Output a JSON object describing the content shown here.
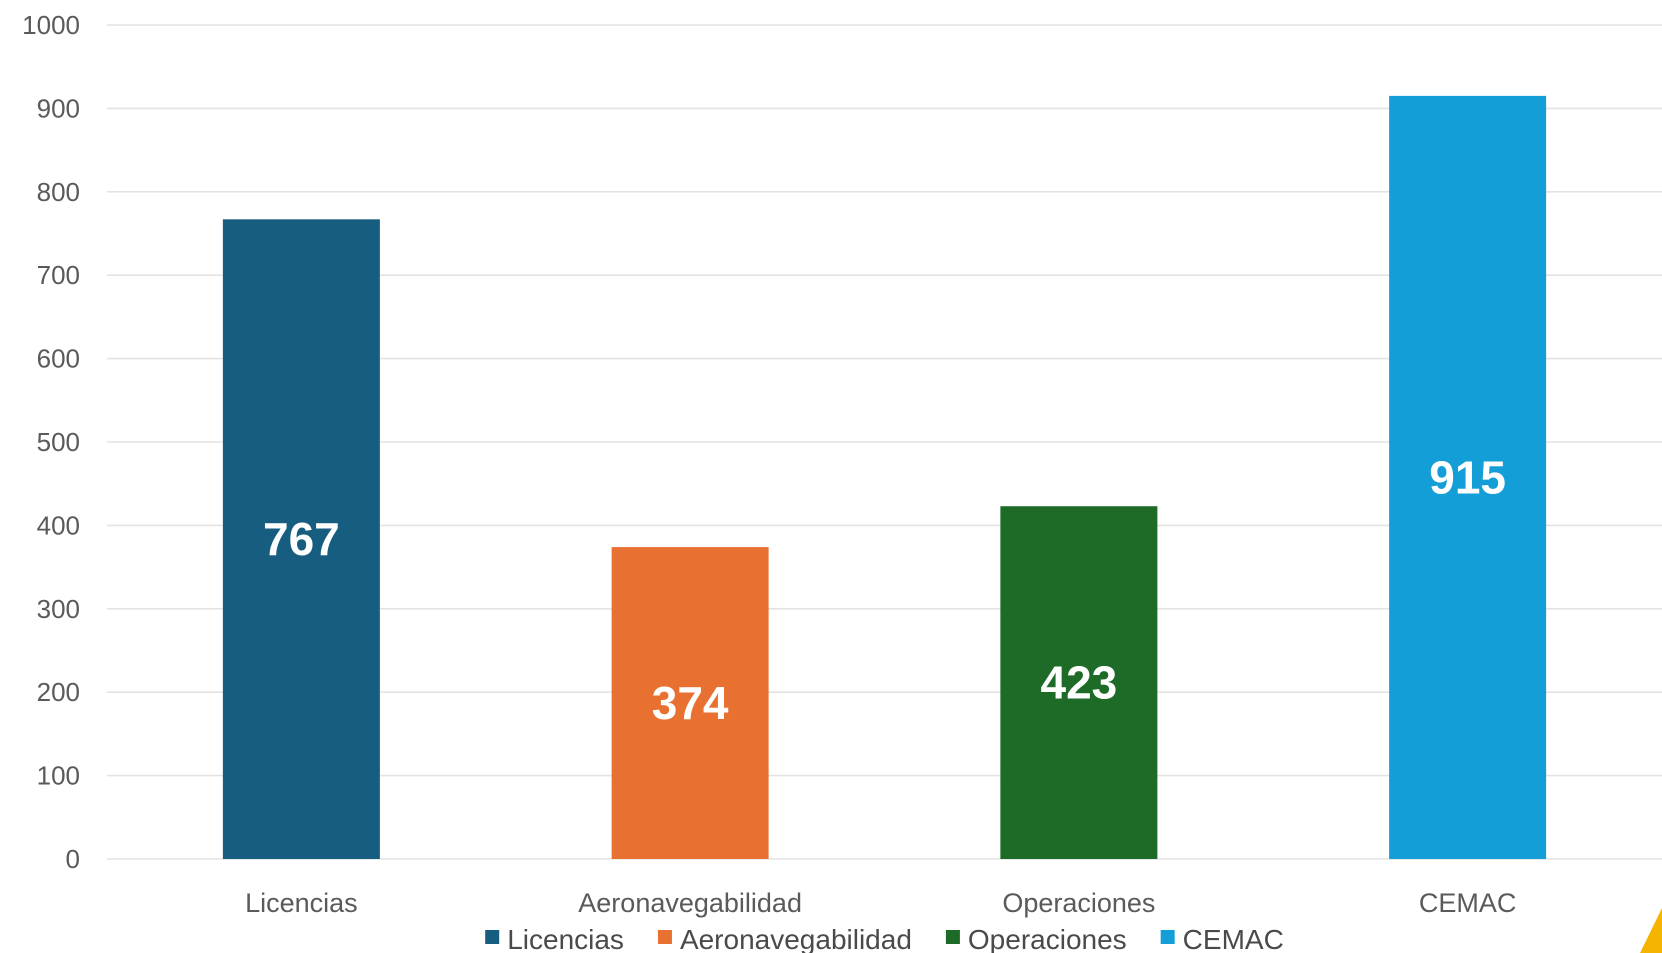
{
  "chart_data": {
    "type": "bar",
    "title": "",
    "xlabel": "",
    "ylabel": "",
    "categories": [
      "Licencias",
      "Aeronavegabilidad",
      "Operaciones",
      "CEMAC"
    ],
    "values": [
      767,
      374,
      423,
      915
    ],
    "data_labels": [
      "767",
      "374",
      "423",
      "915"
    ],
    "colors": [
      "#175d80",
      "#e87132",
      "#1d6b27",
      "#149ed8"
    ],
    "ylim": [
      0,
      1000
    ],
    "yticks": [
      0,
      100,
      200,
      300,
      400,
      500,
      600,
      700,
      800,
      900,
      1000
    ],
    "ytick_labels": [
      "0",
      "100",
      "200",
      "300",
      "400",
      "500",
      "600",
      "700",
      "800",
      "900",
      "1000"
    ],
    "grid": true,
    "legend": {
      "position": "bottom",
      "entries": [
        {
          "label": "Licencias",
          "color": "#175d80"
        },
        {
          "label": "Aeronavegabilidad",
          "color": "#e87132"
        },
        {
          "label": "Operaciones",
          "color": "#1d6b27"
        },
        {
          "label": "CEMAC",
          "color": "#149ed8"
        }
      ]
    },
    "accent_color": "#f4b400"
  }
}
